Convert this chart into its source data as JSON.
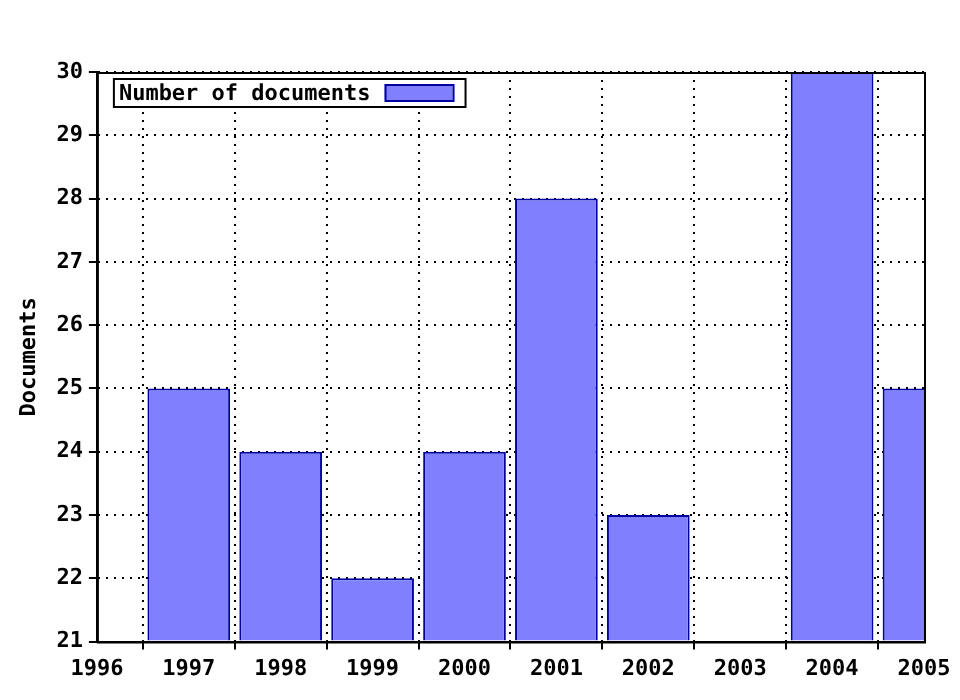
{
  "chart_data": {
    "type": "bar",
    "ylabel": "Documents",
    "x": [
      1997,
      1998,
      1999,
      2000,
      2001,
      2002,
      2003,
      2004,
      2005
    ],
    "series": [
      {
        "name": "Number of documents",
        "color": "#8080ff",
        "values": [
          25,
          24,
          22,
          24,
          28,
          23,
          null,
          30,
          25
        ]
      }
    ],
    "xlim": [
      1996,
      2005
    ],
    "xticks": [
      1996,
      1997,
      1998,
      1999,
      2000,
      2001,
      2002,
      2003,
      2004,
      2005
    ],
    "ylim": [
      21,
      30
    ],
    "yticks": [
      21,
      22,
      23,
      24,
      25,
      26,
      27,
      28,
      29,
      30
    ],
    "grid": true,
    "legend": "top left"
  }
}
